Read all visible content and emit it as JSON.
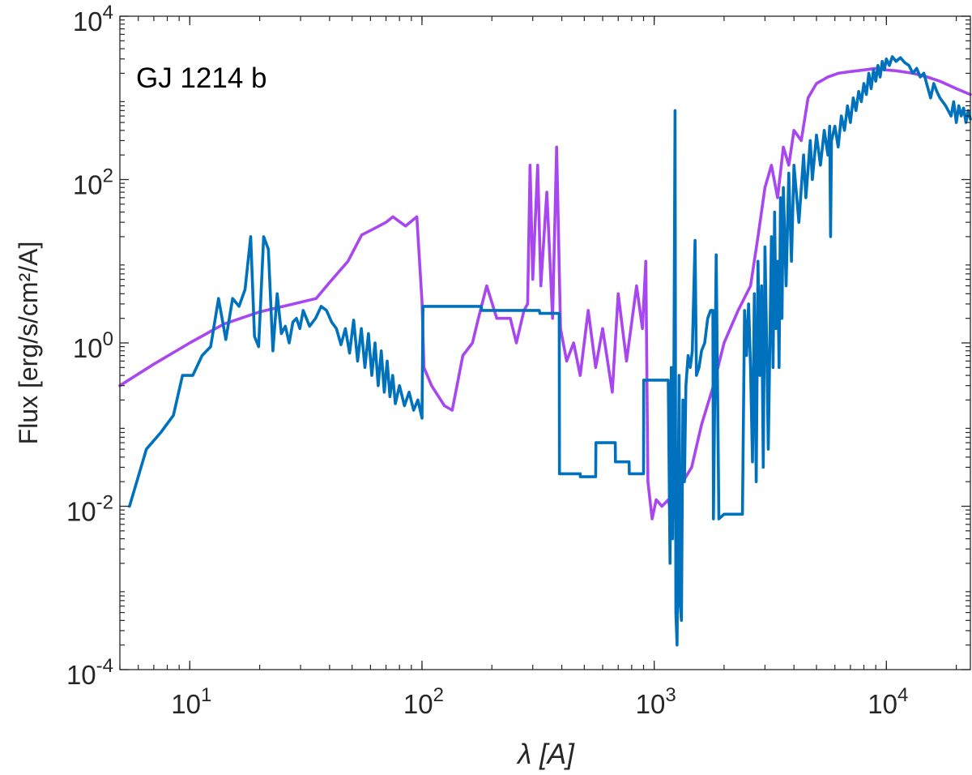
{
  "chart_data": {
    "type": "line",
    "title": "GJ 1214 b",
    "xlabel": "λ [A]",
    "ylabel": "Flux [erg/s/cm²/A]",
    "xscale": "log",
    "yscale": "log",
    "xlim": [
      5,
      23000
    ],
    "ylim": [
      0.0001,
      10000
    ],
    "x_ticks": [
      {
        "value": 10,
        "base": "10",
        "exp": "1"
      },
      {
        "value": 100,
        "base": "10",
        "exp": "2"
      },
      {
        "value": 1000,
        "base": "10",
        "exp": "3"
      },
      {
        "value": 10000,
        "base": "10",
        "exp": "4"
      }
    ],
    "y_ticks": [
      {
        "value": 0.0001,
        "base": "10",
        "exp": "-4"
      },
      {
        "value": 0.01,
        "base": "10",
        "exp": "-2"
      },
      {
        "value": 1,
        "base": "10",
        "exp": "0"
      },
      {
        "value": 100,
        "base": "10",
        "exp": "2"
      },
      {
        "value": 10000,
        "base": "10",
        "exp": "4"
      }
    ],
    "grid": false,
    "legend": "none",
    "series": [
      {
        "color": "#a846f0",
        "points": [
          [
            5,
            0.3
          ],
          [
            7,
            0.55
          ],
          [
            10,
            1.0
          ],
          [
            14,
            1.7
          ],
          [
            20,
            2.4
          ],
          [
            28,
            3.0
          ],
          [
            35,
            3.5
          ],
          [
            40,
            5.5
          ],
          [
            48,
            10
          ],
          [
            55,
            21
          ],
          [
            62,
            25
          ],
          [
            70,
            30
          ],
          [
            75,
            35
          ],
          [
            85,
            27
          ],
          [
            95,
            35
          ],
          [
            100,
            3.2
          ],
          [
            102,
            0.5
          ],
          [
            110,
            0.3
          ],
          [
            125,
            0.17
          ],
          [
            135,
            0.15
          ],
          [
            150,
            0.7
          ],
          [
            165,
            1.0
          ],
          [
            175,
            2.0
          ],
          [
            190,
            5.0
          ],
          [
            210,
            2.0
          ],
          [
            240,
            2.0
          ],
          [
            255,
            1.0
          ],
          [
            275,
            2.5
          ],
          [
            285,
            3.0
          ],
          [
            292,
            150
          ],
          [
            300,
            6.0
          ],
          [
            315,
            150
          ],
          [
            325,
            5.0
          ],
          [
            345,
            70
          ],
          [
            365,
            2.0
          ],
          [
            380,
            250
          ],
          [
            395,
            1.5
          ],
          [
            420,
            0.6
          ],
          [
            450,
            1.0
          ],
          [
            480,
            0.4
          ],
          [
            520,
            2.5
          ],
          [
            560,
            0.5
          ],
          [
            600,
            1.5
          ],
          [
            660,
            0.25
          ],
          [
            700,
            4.0
          ],
          [
            760,
            0.6
          ],
          [
            840,
            5.0
          ],
          [
            890,
            1.5
          ],
          [
            920,
            10
          ],
          [
            940,
            0.02
          ],
          [
            980,
            0.007
          ],
          [
            1020,
            0.012
          ],
          [
            1080,
            0.01
          ],
          [
            1150,
            0.012
          ],
          [
            1200,
            0.007
          ],
          [
            1300,
            0.018
          ],
          [
            1450,
            0.03
          ],
          [
            1600,
            0.1
          ],
          [
            1800,
            0.3
          ],
          [
            2000,
            1.0
          ],
          [
            2300,
            2.5
          ],
          [
            2600,
            5.0
          ],
          [
            2800,
            20
          ],
          [
            3000,
            80
          ],
          [
            3200,
            150
          ],
          [
            3400,
            60
          ],
          [
            3600,
            250
          ],
          [
            3800,
            150
          ],
          [
            4000,
            400
          ],
          [
            4300,
            300
          ],
          [
            4600,
            1000
          ],
          [
            5000,
            1500
          ],
          [
            5600,
            1800
          ],
          [
            6200,
            2000
          ],
          [
            7000,
            2100
          ],
          [
            8000,
            2200
          ],
          [
            9000,
            2300
          ],
          [
            10000,
            2200
          ],
          [
            11000,
            2150
          ],
          [
            13000,
            2000
          ],
          [
            15000,
            1800
          ],
          [
            17000,
            1600
          ],
          [
            20000,
            1300
          ],
          [
            23000,
            1100
          ]
        ]
      },
      {
        "color": "#0072bd",
        "points": [
          [
            5.5,
            0.01
          ],
          [
            6.5,
            0.05
          ],
          [
            7.5,
            0.08
          ],
          [
            8.5,
            0.13
          ],
          [
            9.3,
            0.4
          ],
          [
            10.3,
            0.4
          ],
          [
            11.3,
            0.7
          ],
          [
            12.3,
            0.9
          ],
          [
            13.3,
            3.5
          ],
          [
            14.3,
            1.1
          ],
          [
            15.3,
            3.5
          ],
          [
            16.3,
            2.8
          ],
          [
            17.3,
            4.5
          ],
          [
            18.3,
            20
          ],
          [
            19.0,
            1.2
          ],
          [
            19.8,
            0.9
          ],
          [
            20.8,
            20
          ],
          [
            21.8,
            14
          ],
          [
            22.8,
            0.8
          ],
          [
            23.8,
            4.0
          ],
          [
            24.8,
            1.3
          ],
          [
            25.8,
            1.6
          ],
          [
            26.8,
            1.0
          ],
          [
            27.8,
            1.8
          ],
          [
            28.8,
            2.0
          ],
          [
            29.8,
            1.5
          ],
          [
            30.8,
            2.5
          ],
          [
            32.8,
            1.6
          ],
          [
            34.8,
            2.0
          ],
          [
            36.8,
            2.8
          ],
          [
            38.8,
            2.5
          ],
          [
            40.8,
            1.8
          ],
          [
            42.8,
            1.5
          ],
          [
            44.8,
            0.95
          ],
          [
            46.8,
            1.5
          ],
          [
            48.8,
            0.75
          ],
          [
            50.8,
            1.9
          ],
          [
            52.8,
            0.6
          ],
          [
            54.8,
            1.5
          ],
          [
            56.8,
            0.5
          ],
          [
            58.8,
            1.3
          ],
          [
            60.8,
            0.4
          ],
          [
            62.8,
            1.0
          ],
          [
            64.8,
            0.3
          ],
          [
            66.8,
            0.8
          ],
          [
            68.8,
            0.25
          ],
          [
            70.8,
            0.6
          ],
          [
            72.8,
            0.22
          ],
          [
            74.8,
            0.4
          ],
          [
            76.8,
            0.18
          ],
          [
            80,
            0.3
          ],
          [
            84,
            0.17
          ],
          [
            88,
            0.25
          ],
          [
            92,
            0.15
          ],
          [
            96,
            0.2
          ],
          [
            100,
            0.12
          ],
          [
            101,
            2.8
          ],
          [
            180,
            2.8
          ],
          [
            181,
            2.5
          ],
          [
            320,
            2.5
          ],
          [
            322,
            2.3
          ],
          [
            390,
            2.3
          ],
          [
            391,
            0.025
          ],
          [
            480,
            0.025
          ],
          [
            481,
            0.023
          ],
          [
            560,
            0.023
          ],
          [
            561,
            0.06
          ],
          [
            680,
            0.06
          ],
          [
            681,
            0.035
          ],
          [
            780,
            0.035
          ],
          [
            781,
            0.025
          ],
          [
            900,
            0.025
          ],
          [
            901,
            0.35
          ],
          [
            1150,
            0.35
          ],
          [
            1170,
            0.002
          ],
          [
            1185,
            0.5
          ],
          [
            1200,
            0.004
          ],
          [
            1215,
            0.3
          ],
          [
            1230,
            700
          ],
          [
            1240,
            0.0005
          ],
          [
            1255,
            0.0002
          ],
          [
            1265,
            0.005
          ],
          [
            1280,
            0.4
          ],
          [
            1295,
            0.0006
          ],
          [
            1310,
            0.0004
          ],
          [
            1330,
            0.2
          ],
          [
            1350,
            0.02
          ],
          [
            1370,
            0.3
          ],
          [
            1400,
            0.7
          ],
          [
            1430,
            0.5
          ],
          [
            1460,
            0.8
          ],
          [
            1500,
            18
          ],
          [
            1520,
            0.4
          ],
          [
            1560,
            0.5
          ],
          [
            1600,
            0.8
          ],
          [
            1650,
            1.0
          ],
          [
            1700,
            2.0
          ],
          [
            1750,
            2.5
          ],
          [
            1790,
            2.5
          ],
          [
            1800,
            0.007
          ],
          [
            1850,
            12
          ],
          [
            1900,
            0.007
          ],
          [
            2000,
            0.008
          ],
          [
            2400,
            0.008
          ],
          [
            2450,
            2.5
          ],
          [
            2500,
            0.7
          ],
          [
            2550,
            3.0
          ],
          [
            2600,
            0.5
          ],
          [
            2650,
            0.035
          ],
          [
            2700,
            4.0
          ],
          [
            2750,
            0.02
          ],
          [
            2800,
            10
          ],
          [
            2850,
            0.4
          ],
          [
            2900,
            5.0
          ],
          [
            2950,
            0.03
          ],
          [
            3000,
            15
          ],
          [
            3050,
            1.0
          ],
          [
            3100,
            0.05
          ],
          [
            3200,
            20
          ],
          [
            3250,
            0.5
          ],
          [
            3300,
            40
          ],
          [
            3350,
            1.5
          ],
          [
            3400,
            10
          ],
          [
            3450,
            0.5
          ],
          [
            3500,
            60
          ],
          [
            3550,
            2.0
          ],
          [
            3600,
            80
          ],
          [
            3700,
            5.0
          ],
          [
            3800,
            120
          ],
          [
            3900,
            10
          ],
          [
            4000,
            150
          ],
          [
            4200,
            30
          ],
          [
            4400,
            200
          ],
          [
            4500,
            60
          ],
          [
            4700,
            300
          ],
          [
            4800,
            100
          ],
          [
            5000,
            350
          ],
          [
            5200,
            150
          ],
          [
            5400,
            400
          ],
          [
            5600,
            200
          ],
          [
            5700,
            450
          ],
          [
            5750,
            20
          ],
          [
            5800,
            300
          ],
          [
            6000,
            450
          ],
          [
            6200,
            250
          ],
          [
            6400,
            600
          ],
          [
            6600,
            400
          ],
          [
            6800,
            800
          ],
          [
            7000,
            500
          ],
          [
            7200,
            1000
          ],
          [
            7400,
            700
          ],
          [
            7600,
            1200
          ],
          [
            7800,
            900
          ],
          [
            8000,
            1500
          ],
          [
            8200,
            1100
          ],
          [
            8400,
            2000
          ],
          [
            8600,
            1300
          ],
          [
            8800,
            2200
          ],
          [
            9000,
            1600
          ],
          [
            9200,
            2500
          ],
          [
            9400,
            1800
          ],
          [
            9600,
            2800
          ],
          [
            9800,
            2200
          ],
          [
            10000,
            3000
          ],
          [
            10300,
            2500
          ],
          [
            10600,
            3200
          ],
          [
            11000,
            2800
          ],
          [
            11500,
            3100
          ],
          [
            12000,
            2700
          ],
          [
            12500,
            2500
          ],
          [
            13000,
            2000
          ],
          [
            13500,
            2300
          ],
          [
            14000,
            1800
          ],
          [
            14500,
            2000
          ],
          [
            15000,
            1400
          ],
          [
            15500,
            1000
          ],
          [
            16000,
            1500
          ],
          [
            16500,
            1200
          ],
          [
            17000,
            1000
          ],
          [
            18000,
            800
          ],
          [
            19000,
            600
          ],
          [
            19500,
            900
          ],
          [
            20000,
            500
          ],
          [
            20500,
            800
          ],
          [
            21000,
            600
          ],
          [
            21500,
            750
          ],
          [
            22000,
            500
          ],
          [
            22500,
            700
          ],
          [
            23000,
            550
          ]
        ]
      }
    ]
  }
}
